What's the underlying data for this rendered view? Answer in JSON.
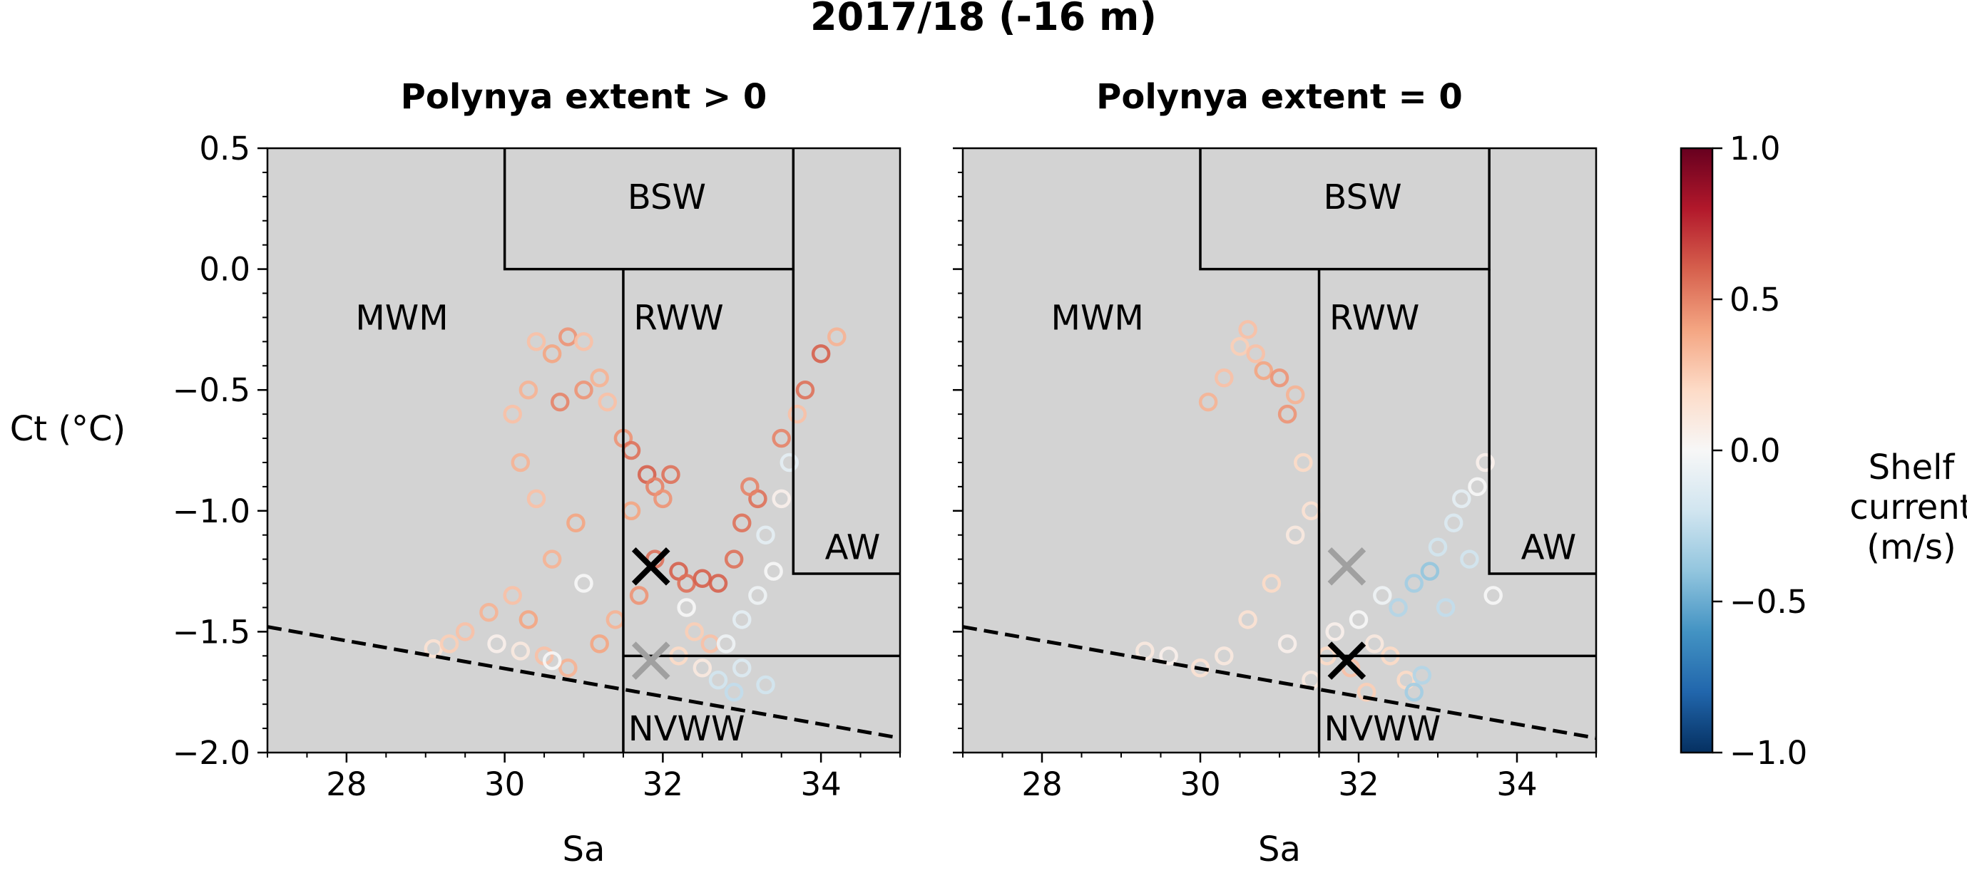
{
  "figure_title": "2017/18 (-16 m)",
  "colors": {
    "panel_background": "#d3d3d3",
    "region_lines": "#000000",
    "freezing_line": "#000000",
    "marker_black": "#000000",
    "marker_gray": "#a0a0a0"
  },
  "colorbar": {
    "label": "Shelf current (m/s)",
    "label_lines": [
      "Shelf",
      "current",
      "(m/s)"
    ],
    "colormap": "RdBu_r",
    "stops": [
      "#053061",
      "#2166ac",
      "#4393c3",
      "#92c5de",
      "#d1e5f0",
      "#f7f7f7",
      "#fddbc7",
      "#f4a582",
      "#d6604d",
      "#b2182b",
      "#67001f"
    ],
    "vmin": -1.0,
    "vmax": 1.0,
    "ticks": [
      {
        "value": 1.0,
        "label": "1.0"
      },
      {
        "value": 0.5,
        "label": "0.5"
      },
      {
        "value": 0.0,
        "label": "0.0"
      },
      {
        "value": -0.5,
        "label": "−0.5"
      },
      {
        "value": -1.0,
        "label": "−1.0"
      }
    ]
  },
  "chart_data": [
    {
      "type": "scatter",
      "title": "Polynya extent > 0",
      "xlabel": "Sa",
      "ylabel": "Ct (°C)",
      "xlim": [
        27,
        35
      ],
      "ylim": [
        -2.0,
        0.5
      ],
      "xticks": [
        {
          "value": 28,
          "label": "28"
        },
        {
          "value": 30,
          "label": "30"
        },
        {
          "value": 32,
          "label": "32"
        },
        {
          "value": 34,
          "label": "34"
        }
      ],
      "yticks": [
        {
          "value": 0.5,
          "label": "0.5"
        },
        {
          "value": 0.0,
          "label": "0.0"
        },
        {
          "value": -0.5,
          "label": "−0.5"
        },
        {
          "value": -1.0,
          "label": "−1.0"
        },
        {
          "value": -1.5,
          "label": "−1.5"
        },
        {
          "value": -2.0,
          "label": "−2.0"
        }
      ],
      "regions": [
        {
          "label": "BSW",
          "label_at": [
            32.05,
            0.3
          ]
        },
        {
          "label": "MWM",
          "label_at": [
            28.7,
            -0.2
          ]
        },
        {
          "label": "RWW",
          "label_at": [
            32.2,
            -0.2
          ]
        },
        {
          "label": "AW",
          "label_at": [
            34.4,
            -1.15
          ]
        },
        {
          "label": "NVWW",
          "label_at": [
            32.3,
            -1.9
          ]
        }
      ],
      "region_boundaries": [
        [
          [
            30,
            0.5
          ],
          [
            30,
            0.0
          ],
          [
            33.65,
            0.0
          ],
          [
            33.65,
            0.5
          ]
        ],
        [
          [
            31.5,
            0.0
          ],
          [
            31.5,
            -2.0
          ]
        ],
        [
          [
            33.65,
            0.0
          ],
          [
            33.65,
            -1.26
          ],
          [
            35,
            -1.26
          ]
        ],
        [
          [
            31.5,
            -1.6
          ],
          [
            35,
            -1.6
          ]
        ]
      ],
      "freezing_line": [
        [
          27,
          -1.48
        ],
        [
          35,
          -1.94
        ]
      ],
      "markers": [
        {
          "x": 31.85,
          "y": -1.23,
          "color": "black"
        },
        {
          "x": 31.85,
          "y": -1.62,
          "color": "gray"
        }
      ],
      "series": [
        {
          "values": [
            [
              29.1,
              -1.57,
              0.15
            ],
            [
              29.3,
              -1.55,
              0.25
            ],
            [
              29.5,
              -1.5,
              0.3
            ],
            [
              29.8,
              -1.42,
              0.35
            ],
            [
              30.1,
              -1.35,
              0.3
            ],
            [
              30.3,
              -1.45,
              0.4
            ],
            [
              30.5,
              -1.6,
              0.3
            ],
            [
              30.8,
              -1.65,
              0.35
            ],
            [
              30.6,
              -1.2,
              0.35
            ],
            [
              30.9,
              -1.05,
              0.4
            ],
            [
              30.4,
              -0.95,
              0.3
            ],
            [
              30.2,
              -0.8,
              0.35
            ],
            [
              30.1,
              -0.6,
              0.3
            ],
            [
              30.3,
              -0.5,
              0.35
            ],
            [
              30.4,
              -0.3,
              0.3
            ],
            [
              30.6,
              -0.35,
              0.4
            ],
            [
              30.8,
              -0.28,
              0.45
            ],
            [
              31.0,
              -0.3,
              0.3
            ],
            [
              30.7,
              -0.55,
              0.5
            ],
            [
              31.0,
              -0.5,
              0.45
            ],
            [
              31.2,
              -0.45,
              0.35
            ],
            [
              31.3,
              -0.55,
              0.3
            ],
            [
              31.5,
              -0.7,
              0.45
            ],
            [
              31.6,
              -0.75,
              0.55
            ],
            [
              31.8,
              -0.85,
              0.6
            ],
            [
              31.9,
              -0.9,
              0.5
            ],
            [
              32.0,
              -0.95,
              0.45
            ],
            [
              32.1,
              -0.85,
              0.55
            ],
            [
              31.9,
              -1.2,
              0.55
            ],
            [
              32.2,
              -1.25,
              0.6
            ],
            [
              32.3,
              -1.3,
              0.55
            ],
            [
              32.5,
              -1.28,
              0.6
            ],
            [
              32.7,
              -1.3,
              0.6
            ],
            [
              32.9,
              -1.2,
              0.55
            ],
            [
              33.0,
              -1.05,
              0.55
            ],
            [
              33.2,
              -0.95,
              0.55
            ],
            [
              33.5,
              -0.7,
              0.5
            ],
            [
              33.8,
              -0.5,
              0.55
            ],
            [
              34.0,
              -0.35,
              0.6
            ],
            [
              34.2,
              -0.28,
              0.35
            ],
            [
              33.7,
              -0.6,
              0.3
            ],
            [
              33.1,
              -0.9,
              0.5
            ],
            [
              32.6,
              -1.55,
              0.3
            ],
            [
              32.4,
              -1.5,
              0.25
            ],
            [
              32.2,
              -1.6,
              0.2
            ],
            [
              32.5,
              -1.65,
              0.1
            ],
            [
              32.8,
              -1.55,
              -0.05
            ],
            [
              33.0,
              -1.45,
              -0.1
            ],
            [
              33.2,
              -1.35,
              -0.05
            ],
            [
              33.4,
              -1.25,
              0.0
            ],
            [
              33.3,
              -1.1,
              -0.1
            ],
            [
              33.5,
              -0.95,
              0.05
            ],
            [
              32.7,
              -1.7,
              -0.2
            ],
            [
              33.0,
              -1.65,
              -0.15
            ],
            [
              32.9,
              -1.75,
              -0.25
            ],
            [
              33.3,
              -1.72,
              -0.2
            ],
            [
              31.6,
              -1.0,
              0.4
            ],
            [
              31.7,
              -1.35,
              0.45
            ],
            [
              31.4,
              -1.45,
              0.35
            ],
            [
              31.2,
              -1.55,
              0.4
            ],
            [
              29.9,
              -1.55,
              0.05
            ],
            [
              30.2,
              -1.58,
              0.1
            ],
            [
              30.6,
              -1.62,
              0.0
            ],
            [
              31.0,
              -1.3,
              0.0
            ],
            [
              32.3,
              -1.4,
              0.0
            ],
            [
              33.6,
              -0.8,
              -0.1
            ]
          ]
        }
      ]
    },
    {
      "type": "scatter",
      "title": "Polynya extent = 0",
      "xlabel": "Sa",
      "ylabel": "",
      "xlim": [
        27,
        35
      ],
      "ylim": [
        -2.0,
        0.5
      ],
      "xticks": [
        {
          "value": 28,
          "label": "28"
        },
        {
          "value": 30,
          "label": "30"
        },
        {
          "value": 32,
          "label": "32"
        },
        {
          "value": 34,
          "label": "34"
        }
      ],
      "yticks": [],
      "regions": [
        {
          "label": "BSW",
          "label_at": [
            32.05,
            0.3
          ]
        },
        {
          "label": "MWM",
          "label_at": [
            28.7,
            -0.2
          ]
        },
        {
          "label": "RWW",
          "label_at": [
            32.2,
            -0.2
          ]
        },
        {
          "label": "AW",
          "label_at": [
            34.4,
            -1.15
          ]
        },
        {
          "label": "NVWW",
          "label_at": [
            32.3,
            -1.9
          ]
        }
      ],
      "region_boundaries": [
        [
          [
            30,
            0.5
          ],
          [
            30,
            0.0
          ],
          [
            33.65,
            0.0
          ],
          [
            33.65,
            0.5
          ]
        ],
        [
          [
            31.5,
            0.0
          ],
          [
            31.5,
            -2.0
          ]
        ],
        [
          [
            33.65,
            0.0
          ],
          [
            33.65,
            -1.26
          ],
          [
            35,
            -1.26
          ]
        ],
        [
          [
            31.5,
            -1.6
          ],
          [
            35,
            -1.6
          ]
        ]
      ],
      "freezing_line": [
        [
          27,
          -1.48
        ],
        [
          35,
          -1.94
        ]
      ],
      "markers": [
        {
          "x": 31.85,
          "y": -1.23,
          "color": "gray"
        },
        {
          "x": 31.85,
          "y": -1.62,
          "color": "black"
        }
      ],
      "series": [
        {
          "values": [
            [
              30.1,
              -0.55,
              0.35
            ],
            [
              30.3,
              -0.45,
              0.3
            ],
            [
              30.5,
              -0.32,
              0.25
            ],
            [
              30.6,
              -0.25,
              0.3
            ],
            [
              30.7,
              -0.35,
              0.3
            ],
            [
              30.8,
              -0.42,
              0.4
            ],
            [
              31.0,
              -0.45,
              0.45
            ],
            [
              31.1,
              -0.6,
              0.45
            ],
            [
              31.2,
              -0.52,
              0.35
            ],
            [
              31.3,
              -0.8,
              0.2
            ],
            [
              31.4,
              -1.0,
              0.15
            ],
            [
              31.2,
              -1.1,
              0.1
            ],
            [
              30.9,
              -1.3,
              0.2
            ],
            [
              30.6,
              -1.45,
              0.15
            ],
            [
              30.3,
              -1.6,
              0.1
            ],
            [
              30.0,
              -1.65,
              0.15
            ],
            [
              29.6,
              -1.6,
              0.05
            ],
            [
              29.3,
              -1.58,
              0.1
            ],
            [
              31.7,
              -1.5,
              0.05
            ],
            [
              32.0,
              -1.45,
              0.0
            ],
            [
              32.2,
              -1.55,
              0.1
            ],
            [
              32.4,
              -1.6,
              0.2
            ],
            [
              32.6,
              -1.7,
              0.2
            ],
            [
              32.8,
              -1.68,
              -0.3
            ],
            [
              32.7,
              -1.75,
              -0.35
            ],
            [
              32.5,
              -1.4,
              -0.3
            ],
            [
              32.7,
              -1.3,
              -0.35
            ],
            [
              32.9,
              -1.25,
              -0.4
            ],
            [
              33.0,
              -1.15,
              -0.2
            ],
            [
              33.2,
              -1.05,
              -0.15
            ],
            [
              33.3,
              -0.95,
              -0.1
            ],
            [
              33.4,
              -1.2,
              -0.2
            ],
            [
              33.5,
              -0.9,
              0.0
            ],
            [
              33.6,
              -0.8,
              0.05
            ],
            [
              33.7,
              -1.35,
              0.0
            ],
            [
              31.9,
              -1.65,
              0.3
            ],
            [
              31.6,
              -1.6,
              0.2
            ],
            [
              32.1,
              -1.75,
              0.25
            ],
            [
              31.4,
              -1.7,
              0.1
            ],
            [
              31.1,
              -1.55,
              0.05
            ],
            [
              32.3,
              -1.35,
              -0.05
            ],
            [
              33.1,
              -1.4,
              -0.25
            ]
          ]
        }
      ]
    }
  ]
}
